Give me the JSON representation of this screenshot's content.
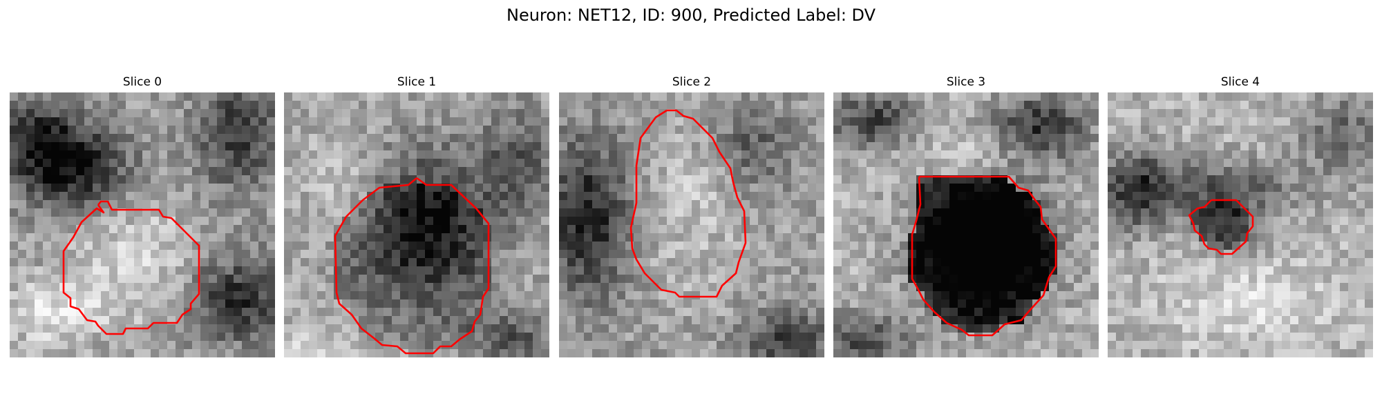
{
  "figure": {
    "title": "Neuron: NET12, ID: 900, Predicted Label: DV",
    "contour_color": "#ff0000"
  },
  "slices": [
    {
      "label": "Slice 0"
    },
    {
      "label": "Slice 1"
    },
    {
      "label": "Slice 2"
    },
    {
      "label": "Slice 3"
    },
    {
      "label": "Slice 4"
    }
  ]
}
